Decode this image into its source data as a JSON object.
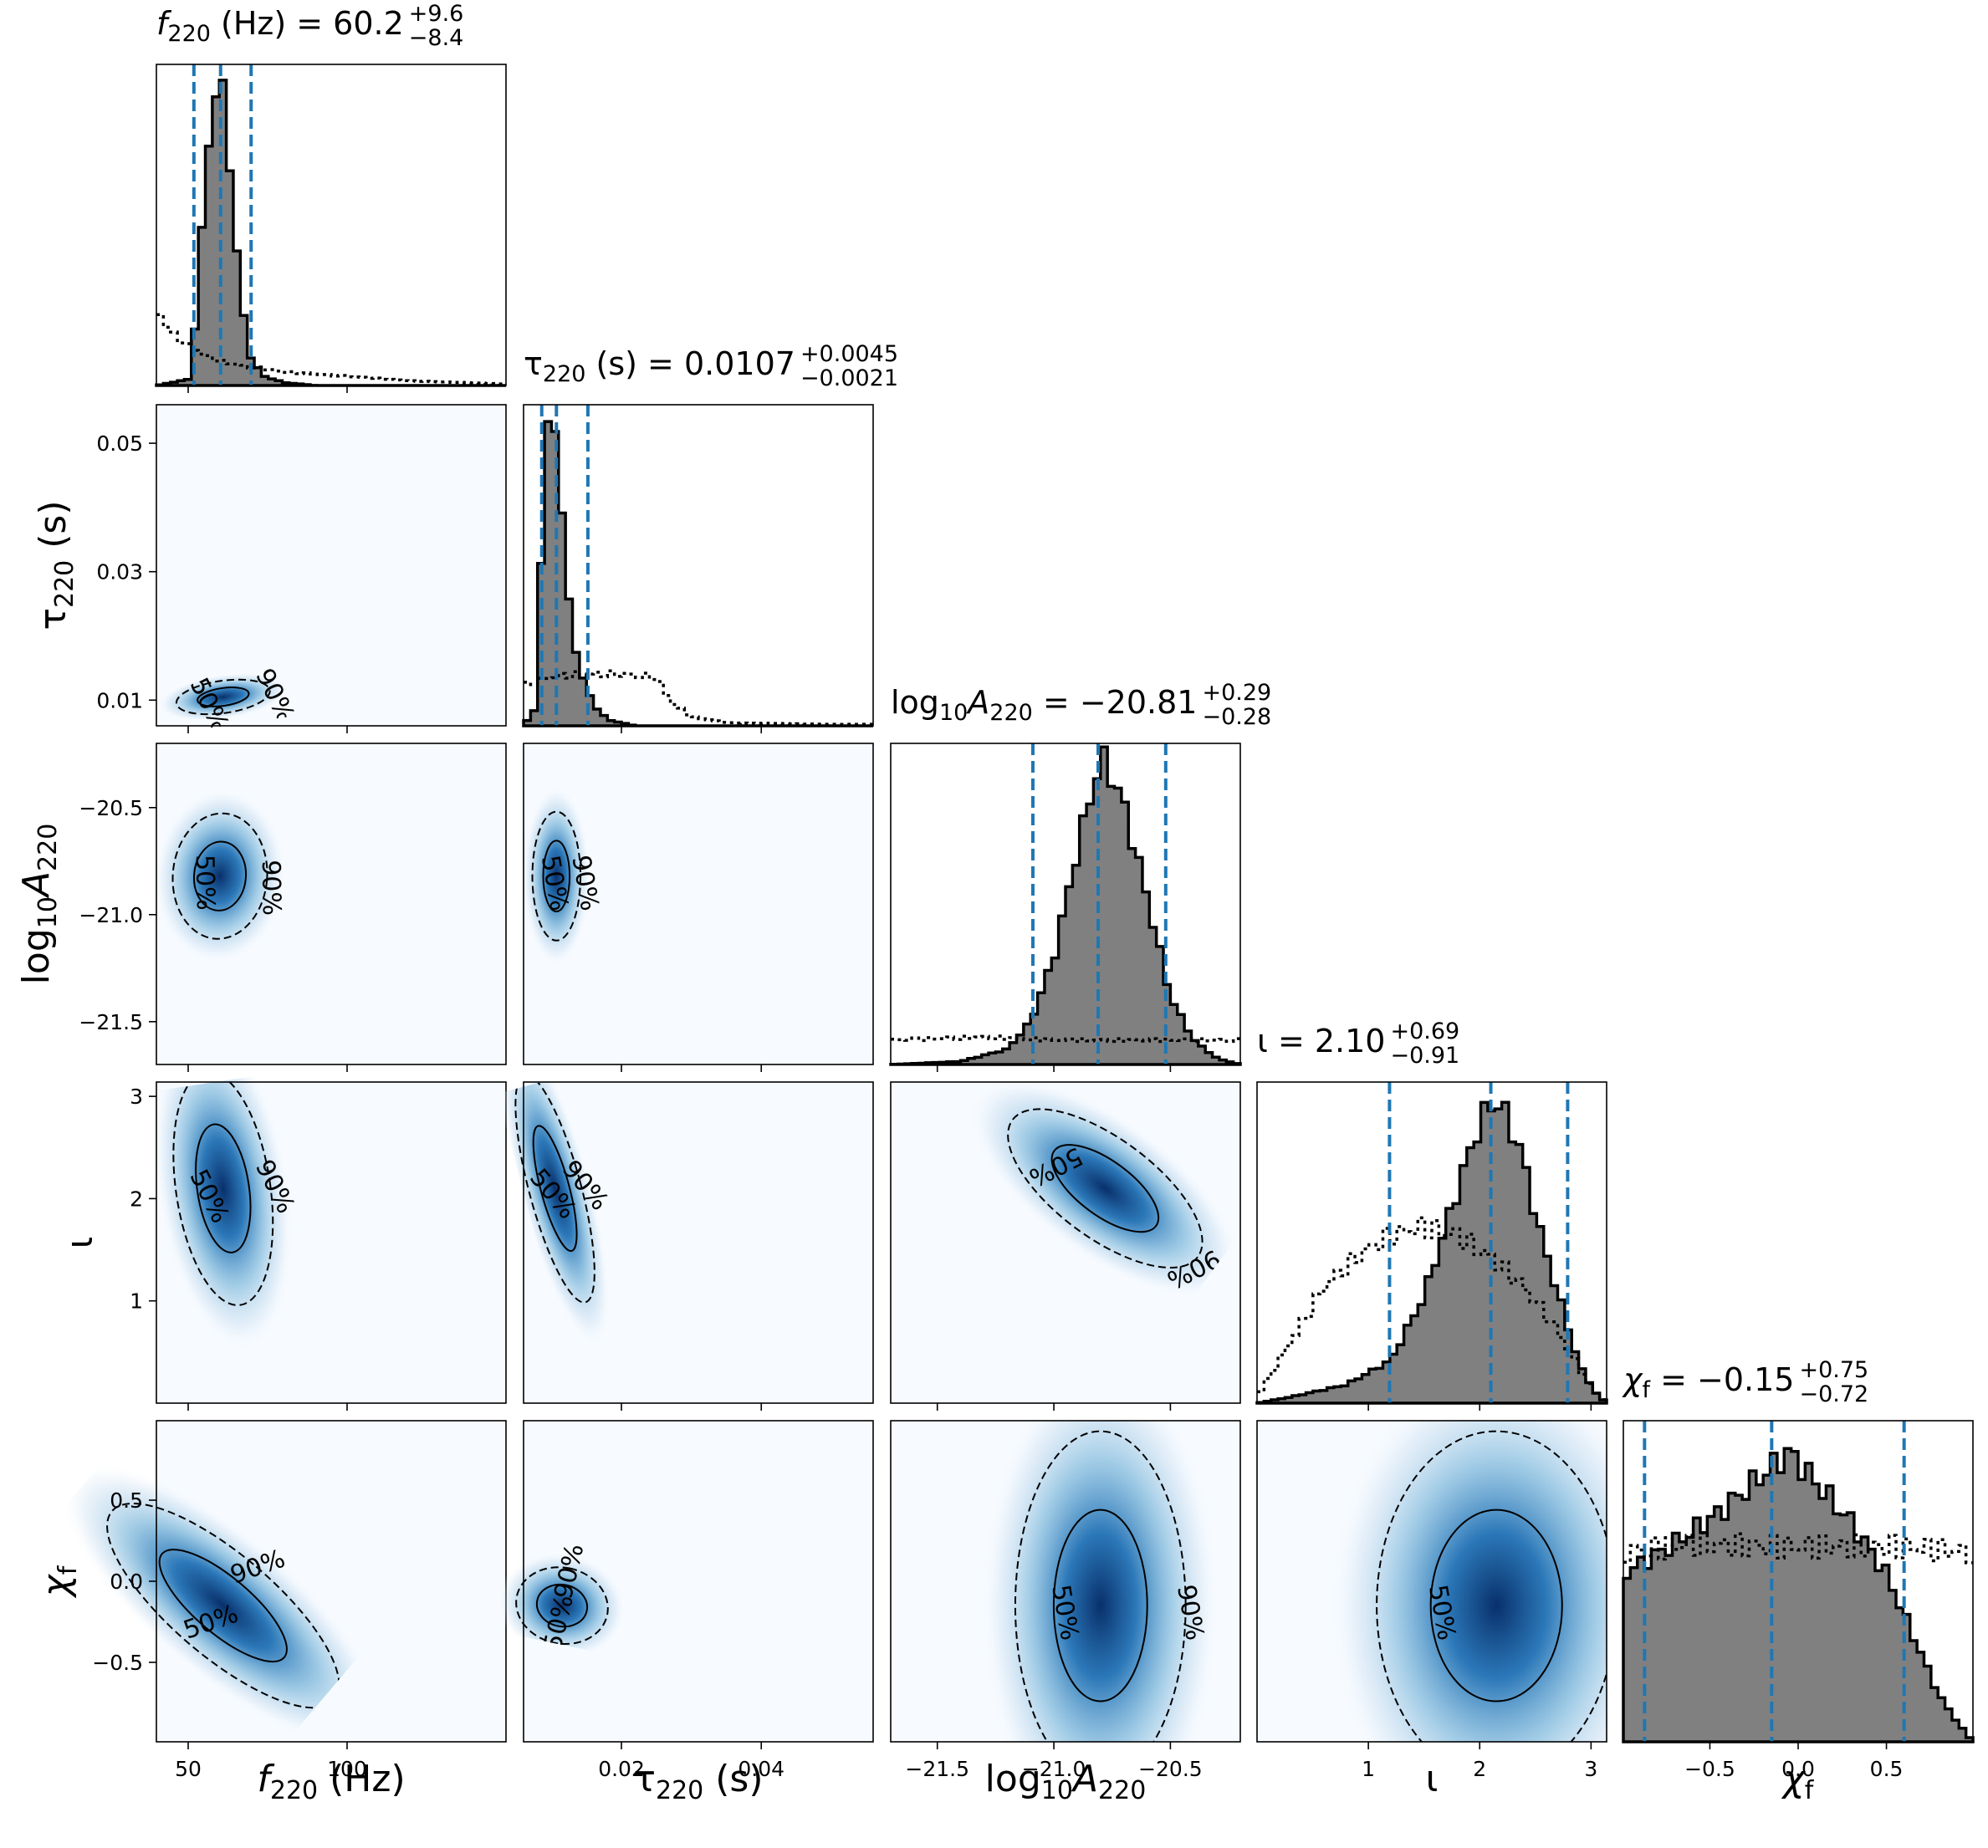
{
  "chart_data": {
    "type": "corner",
    "parameters": [
      {
        "key": "f220",
        "label": "f220 (Hz)",
        "range": [
          40,
          150
        ],
        "ticks": [
          50,
          100
        ],
        "tick_labels": [
          "50",
          "100"
        ],
        "median": 60.2,
        "plus": 9.6,
        "minus": 8.4,
        "title": "f220 (Hz) = 60.2 +9.6 −8.4",
        "title_main": "(Hz) = 60.2",
        "title_plus": "+9.6",
        "title_minus": "−8.4"
      },
      {
        "key": "tau220",
        "label": "τ220 (s)",
        "range": [
          0.006,
          0.056
        ],
        "ticks": [
          0.02,
          0.04
        ],
        "tick_labels": [
          "0.02",
          "0.04"
        ],
        "y_ticks": [
          0.01,
          0.03,
          0.05
        ],
        "y_tick_labels": [
          "0.01",
          "0.03",
          "0.05"
        ],
        "median": 0.0107,
        "plus": 0.0045,
        "minus": 0.0021,
        "title": "τ220 (s) = 0.0107 +0.0045 −0.0021",
        "title_main": "(s) = 0.0107",
        "title_plus": "+0.0045",
        "title_minus": "−0.0021"
      },
      {
        "key": "logA220",
        "label": "log10A220",
        "range": [
          -21.7,
          -20.2
        ],
        "ticks": [
          -21.5,
          -21.0,
          -20.5
        ],
        "tick_labels": [
          "−21.5",
          "−21.0",
          "−20.5"
        ],
        "median": -20.81,
        "plus": 0.29,
        "minus": 0.28,
        "title": "log10A220 = −20.81 +0.29 −0.28",
        "title_main": "= −20.81",
        "title_plus": "+0.29",
        "title_minus": "−0.28"
      },
      {
        "key": "iota",
        "label": "ι",
        "range": [
          0.0,
          3.14
        ],
        "ticks": [
          1,
          2,
          3
        ],
        "tick_labels": [
          "1",
          "2",
          "3"
        ],
        "median": 2.1,
        "plus": 0.69,
        "minus": 0.91,
        "title": "ι = 2.10 +0.69 −0.91",
        "title_main": "= 2.10",
        "title_plus": "+0.69",
        "title_minus": "−0.91"
      },
      {
        "key": "chif",
        "label": "χf",
        "range": [
          -0.99,
          0.99
        ],
        "ticks": [
          -0.5,
          0.0,
          0.5
        ],
        "tick_labels": [
          "−0.5",
          "0.0",
          "0.5"
        ],
        "median": -0.15,
        "plus": 0.75,
        "minus": 0.72,
        "title": "χf = −0.15 +0.75 −0.72",
        "title_main": "= −0.15",
        "title_plus": "+0.75",
        "title_minus": "−0.72"
      }
    ],
    "contour_labels": [
      "50%",
      "90%"
    ],
    "pairs": [
      {
        "x": 0,
        "y": 1,
        "cx": 61,
        "cy": 0.0105,
        "sx": 6,
        "sy": 0.0014,
        "rho": 0.3,
        "labels": [
          [
            -1,
            "90%",
            0.0085
          ]
        ]
      },
      {
        "x": 0,
        "y": 2,
        "cx": 60,
        "cy": -20.82,
        "sx": 6,
        "sy": 0.14,
        "rho": -0.05
      },
      {
        "x": 1,
        "y": 2,
        "cx": 0.0107,
        "cy": -20.82,
        "sx": 0.0016,
        "sy": 0.14,
        "rho": 0.0
      },
      {
        "x": 0,
        "y": 3,
        "cx": 61,
        "cy": 2.1,
        "sx": 6,
        "sy": 0.55,
        "rho": 0.05
      },
      {
        "x": 1,
        "y": 3,
        "cx": 0.0105,
        "cy": 2.1,
        "sx": 0.0015,
        "sy": 0.55,
        "rho": 0.05
      },
      {
        "x": 2,
        "y": 3,
        "cx": -20.78,
        "cy": 2.1,
        "sx": 0.2,
        "sy": 0.45,
        "rho": -0.75
      },
      {
        "x": 0,
        "y": 4,
        "cx": 61,
        "cy": -0.15,
        "sx": 6.5,
        "sy": 0.5,
        "rho": 0.3
      },
      {
        "x": 1,
        "y": 4,
        "cx": 0.0115,
        "cy": -0.15,
        "sx": 0.0022,
        "sy": 0.5,
        "rho": 0.93
      },
      {
        "x": 2,
        "y": 4,
        "cx": -20.8,
        "cy": -0.15,
        "sx": 0.17,
        "sy": 0.5,
        "rho": 0.0
      },
      {
        "x": 3,
        "y": 4,
        "cx": 2.15,
        "cy": -0.15,
        "sx": 0.5,
        "sy": 0.5,
        "rho": 0.0
      }
    ],
    "marginals": [
      {
        "param": 0,
        "posterior": [
          [
            40,
            0
          ],
          [
            50,
            0.02
          ],
          [
            52,
            0.18
          ],
          [
            54,
            0.45
          ],
          [
            56,
            0.75
          ],
          [
            58,
            0.95
          ],
          [
            60,
            1.0
          ],
          [
            62,
            0.9
          ],
          [
            64,
            0.6
          ],
          [
            66,
            0.35
          ],
          [
            68,
            0.18
          ],
          [
            70,
            0.08
          ],
          [
            74,
            0.03
          ],
          [
            80,
            0.01
          ],
          [
            90,
            0
          ],
          [
            150,
            0
          ]
        ],
        "prior": [
          [
            40,
            0.25
          ],
          [
            45,
            0.17
          ],
          [
            50,
            0.13
          ],
          [
            55,
            0.1
          ],
          [
            60,
            0.08
          ],
          [
            70,
            0.06
          ],
          [
            80,
            0.045
          ],
          [
            100,
            0.03
          ],
          [
            120,
            0.015
          ],
          [
            150,
            0.005
          ]
        ]
      },
      {
        "param": 1,
        "posterior": [
          [
            0.006,
            0
          ],
          [
            0.0075,
            0.05
          ],
          [
            0.0085,
            0.55
          ],
          [
            0.0095,
            0.95
          ],
          [
            0.0105,
            1.0
          ],
          [
            0.0115,
            0.7
          ],
          [
            0.0125,
            0.4
          ],
          [
            0.014,
            0.18
          ],
          [
            0.016,
            0.07
          ],
          [
            0.018,
            0.02
          ],
          [
            0.022,
            0
          ],
          [
            0.056,
            0
          ]
        ],
        "prior": [
          [
            0.006,
            0.13
          ],
          [
            0.007,
            0.14
          ],
          [
            0.01,
            0.16
          ],
          [
            0.014,
            0.17
          ],
          [
            0.02,
            0.17
          ],
          [
            0.025,
            0.16
          ],
          [
            0.027,
            0.08
          ],
          [
            0.03,
            0.03
          ],
          [
            0.035,
            0.01
          ],
          [
            0.05,
            0.005
          ],
          [
            0.056,
            0.005
          ]
        ]
      },
      {
        "param": 2,
        "posterior": [
          [
            -21.7,
            0
          ],
          [
            -21.4,
            0.01
          ],
          [
            -21.2,
            0.05
          ],
          [
            -21.1,
            0.14
          ],
          [
            -21.0,
            0.35
          ],
          [
            -20.9,
            0.7
          ],
          [
            -20.82,
            0.95
          ],
          [
            -20.78,
            1.0
          ],
          [
            -20.7,
            0.85
          ],
          [
            -20.6,
            0.55
          ],
          [
            -20.5,
            0.22
          ],
          [
            -20.4,
            0.08
          ],
          [
            -20.3,
            0.02
          ],
          [
            -20.2,
            0
          ]
        ],
        "prior": [
          [
            -21.7,
            0.08
          ],
          [
            -21.3,
            0.09
          ],
          [
            -21.0,
            0.08
          ],
          [
            -20.7,
            0.08
          ],
          [
            -20.4,
            0.08
          ],
          [
            -20.2,
            0.08
          ]
        ]
      },
      {
        "param": 3,
        "posterior": [
          [
            0,
            0
          ],
          [
            0.3,
            0.02
          ],
          [
            0.8,
            0.06
          ],
          [
            1.2,
            0.14
          ],
          [
            1.5,
            0.35
          ],
          [
            1.8,
            0.7
          ],
          [
            2.0,
            0.92
          ],
          [
            2.15,
            1.0
          ],
          [
            2.35,
            0.85
          ],
          [
            2.55,
            0.55
          ],
          [
            2.75,
            0.3
          ],
          [
            2.9,
            0.12
          ],
          [
            3.05,
            0.03
          ],
          [
            3.14,
            0
          ]
        ],
        "prior": [
          [
            0,
            0.02
          ],
          [
            0.3,
            0.2
          ],
          [
            0.6,
            0.38
          ],
          [
            0.9,
            0.48
          ],
          [
            1.2,
            0.55
          ],
          [
            1.5,
            0.58
          ],
          [
            1.8,
            0.55
          ],
          [
            2.1,
            0.48
          ],
          [
            2.4,
            0.38
          ],
          [
            2.7,
            0.24
          ],
          [
            3.0,
            0.05
          ],
          [
            3.14,
            0
          ]
        ]
      },
      {
        "param": 4,
        "posterior": [
          [
            -0.99,
            0.55
          ],
          [
            -0.7,
            0.65
          ],
          [
            -0.45,
            0.75
          ],
          [
            -0.25,
            0.85
          ],
          [
            -0.05,
            0.95
          ],
          [
            0.1,
            0.85
          ],
          [
            0.3,
            0.72
          ],
          [
            0.5,
            0.55
          ],
          [
            0.65,
            0.35
          ],
          [
            0.8,
            0.15
          ],
          [
            0.92,
            0.05
          ],
          [
            0.99,
            0.0
          ]
        ],
        "prior": [
          [
            -0.99,
            0.62
          ],
          [
            -0.6,
            0.65
          ],
          [
            -0.2,
            0.64
          ],
          [
            0.2,
            0.64
          ],
          [
            0.6,
            0.64
          ],
          [
            0.99,
            0.62
          ]
        ]
      }
    ],
    "legend": "none",
    "grid": false
  }
}
